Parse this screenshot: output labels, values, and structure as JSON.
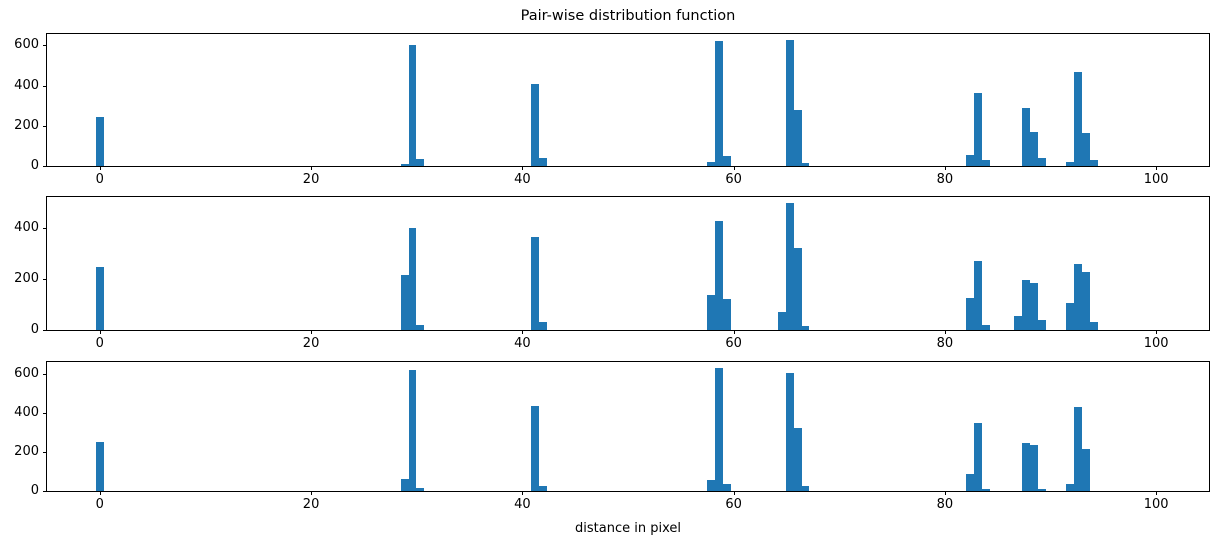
{
  "figure": {
    "title": "Pair-wise distribution function",
    "xlabel": "distance in pixel",
    "bar_color": "#1f77b4",
    "background": "#ffffff"
  },
  "chart_data": [
    {
      "type": "bar",
      "name": "subplot-top",
      "bar_width": 0.75,
      "xlim": [
        -5,
        105
      ],
      "ylim": [
        0,
        656
      ],
      "xticks": [
        0,
        20,
        40,
        60,
        80,
        100
      ],
      "yticks": [
        0,
        200,
        400,
        600
      ],
      "x": [
        0,
        28.85,
        29.6,
        30.35,
        41.2,
        41.95,
        57.85,
        58.6,
        59.35,
        65.3,
        66.05,
        66.8,
        82.35,
        83.1,
        83.85,
        87.7,
        88.45,
        89.2,
        91.85,
        92.6,
        93.35,
        94.1
      ],
      "values": [
        245,
        12,
        600,
        35,
        410,
        40,
        20,
        620,
        50,
        625,
        280,
        15,
        55,
        365,
        30,
        290,
        170,
        40,
        20,
        465,
        165,
        28
      ]
    },
    {
      "type": "bar",
      "name": "subplot-middle",
      "bar_width": 0.75,
      "xlim": [
        -5,
        105
      ],
      "ylim": [
        0,
        520
      ],
      "xticks": [
        0,
        20,
        40,
        60,
        80,
        100
      ],
      "yticks": [
        0,
        200,
        400
      ],
      "x": [
        0,
        28.85,
        29.6,
        30.35,
        41.2,
        41.95,
        57.85,
        58.6,
        59.35,
        64.55,
        65.3,
        66.05,
        66.8,
        82.35,
        83.1,
        83.85,
        86.95,
        87.7,
        88.45,
        89.2,
        91.85,
        92.6,
        93.35,
        94.1
      ],
      "values": [
        245,
        215,
        400,
        20,
        365,
        30,
        135,
        425,
        120,
        70,
        495,
        320,
        15,
        125,
        270,
        20,
        55,
        195,
        185,
        40,
        105,
        260,
        225,
        30
      ]
    },
    {
      "type": "bar",
      "name": "subplot-bottom",
      "bar_width": 0.75,
      "xlim": [
        -5,
        105
      ],
      "ylim": [
        0,
        661
      ],
      "xticks": [
        0,
        20,
        40,
        60,
        80,
        100
      ],
      "yticks": [
        0,
        200,
        400,
        600
      ],
      "x": [
        0,
        28.85,
        29.6,
        30.35,
        41.2,
        41.95,
        57.85,
        58.6,
        59.35,
        65.3,
        66.05,
        66.8,
        82.35,
        83.1,
        83.85,
        87.7,
        88.45,
        89.2,
        91.85,
        92.6,
        93.35
      ],
      "values": [
        250,
        60,
        620,
        18,
        435,
        25,
        55,
        630,
        38,
        605,
        325,
        25,
        85,
        350,
        12,
        245,
        238,
        12,
        35,
        430,
        215
      ]
    }
  ]
}
